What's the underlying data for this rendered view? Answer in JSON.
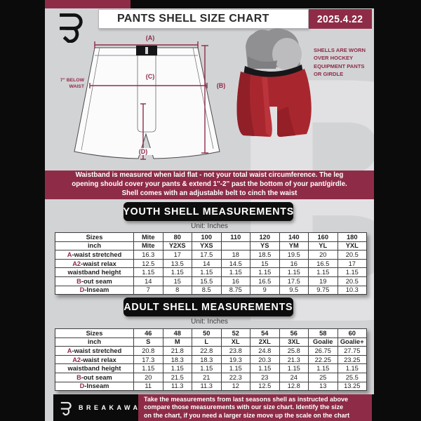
{
  "colors": {
    "maroon": "#8e2c48",
    "page_bg": "#d2d3d5",
    "frame_black": "#0b0b0c",
    "shell_red": "#a8272e"
  },
  "header": {
    "title": "PANTS SHELL SIZE CHART",
    "date": "2025.4.22"
  },
  "diagram": {
    "label_a": "(A)",
    "label_b": "(B)",
    "label_c": "(C)",
    "label_d": "(D)",
    "waist_note": "7'' BELOW WAIST",
    "photo_caption": "SHELLS ARE WORN OVER HOCKEY EQUIPMENT PANTS OR GIRDLE"
  },
  "notice": {
    "lines": [
      "Waistband is measured when laid flat - not your total waist circumference. The leg",
      "opening should cover your pants & extend 1''-2'' past the bottom of your pant/girdle.",
      "Shell comes with an adjustable belt to cinch the waist"
    ]
  },
  "youth": {
    "title": "YOUTH SHELL MEASUREMENTS",
    "unit": "Unit: Inches"
  },
  "adult": {
    "title": "ADULT SHELL MEASUREMENTS",
    "unit": "Unit: Inches"
  },
  "youth_table": {
    "header_rows": [
      {
        "label": "Sizes",
        "values": [
          "Mite",
          "80",
          "100",
          "110",
          "120",
          "140",
          "160",
          "180"
        ]
      },
      {
        "label": "inch",
        "values": [
          "Mite",
          "Y2XS",
          "YXS",
          "",
          "YS",
          "YM",
          "YL",
          "YXL"
        ]
      }
    ],
    "rows": [
      {
        "prefix": "A",
        "label": "-waist stretched",
        "values": [
          "16.3",
          "17",
          "17.5",
          "18",
          "18.5",
          "19.5",
          "20",
          "20.5"
        ]
      },
      {
        "prefix": "A2",
        "label": "-waist relax",
        "values": [
          "12.5",
          "13.5",
          "14",
          "14.5",
          "15",
          "16",
          "16.5",
          "17"
        ]
      },
      {
        "prefix": "",
        "label": "waistband height",
        "values": [
          "1.15",
          "1.15",
          "1.15",
          "1.15",
          "1.15",
          "1.15",
          "1.15",
          "1.15"
        ]
      },
      {
        "prefix": "B",
        "label": "-out seam",
        "values": [
          "14",
          "15",
          "15.5",
          "16",
          "16.5",
          "17.5",
          "19",
          "20.5"
        ]
      },
      {
        "prefix": "D",
        "label": "-Inseam",
        "values": [
          "7",
          "8",
          "8.5",
          "8.75",
          "9",
          "9.5",
          "9.75",
          "10.3"
        ]
      }
    ]
  },
  "adult_table": {
    "header_rows": [
      {
        "label": "Sizes",
        "values": [
          "46",
          "48",
          "50",
          "52",
          "54",
          "56",
          "58",
          "60"
        ]
      },
      {
        "label": "inch",
        "values": [
          "S",
          "M",
          "L",
          "XL",
          "2XL",
          "3XL",
          "Goalie",
          "Goalie+"
        ]
      }
    ],
    "rows": [
      {
        "prefix": "A",
        "label": "-waist stretched",
        "values": [
          "20.8",
          "21.8",
          "22.8",
          "23.8",
          "24.8",
          "25.8",
          "26.75",
          "27.75"
        ]
      },
      {
        "prefix": "A2",
        "label": "-waist relax",
        "values": [
          "17.3",
          "18.3",
          "18.3",
          "19.3",
          "20.3",
          "21.3",
          "22.25",
          "23.25"
        ]
      },
      {
        "prefix": "",
        "label": "waistband height",
        "values": [
          "1.15",
          "1.15",
          "1.15",
          "1.15",
          "1.15",
          "1.15",
          "1.15",
          "1.15"
        ]
      },
      {
        "prefix": "B",
        "label": "-out seam",
        "values": [
          "20",
          "21.5",
          "21",
          "22.3",
          "23",
          "24",
          "25",
          "25.5"
        ]
      },
      {
        "prefix": "D",
        "label": "-Inseam",
        "values": [
          "11",
          "11.3",
          "11.3",
          "12",
          "12.5",
          "12.8",
          "13",
          "13.25"
        ]
      }
    ]
  },
  "footer": {
    "brand": "BREAKAWAY",
    "note_lines": [
      "Take the measurements from last seasons shell as instructed above",
      "compare those measurements with our size chart. Identify the size",
      "on the chart, if you need a larger size move up the scale on the chart"
    ]
  },
  "watermark_letter": "B"
}
